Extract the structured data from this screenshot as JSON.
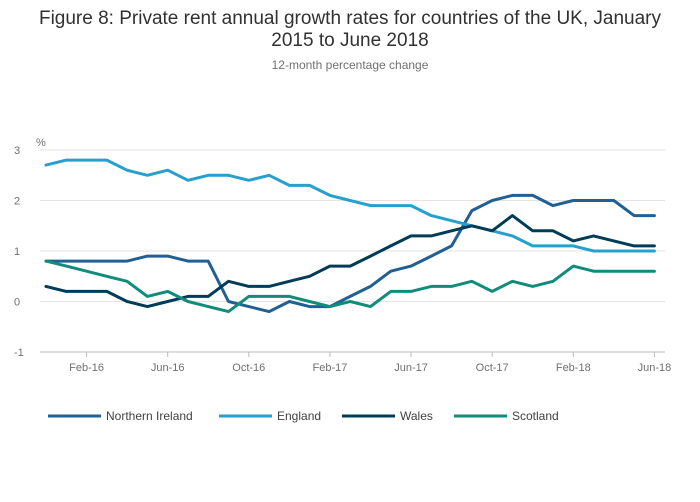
{
  "chart_data": {
    "type": "line",
    "title_lines": [
      "Figure 8: Private rent annual growth rates for countries of the UK, January",
      "2015 to June 2018"
    ],
    "subtitle": "12-month percentage change",
    "ylabel": "%",
    "ylim": [
      -1,
      3
    ],
    "yticks": [
      -1,
      0,
      1,
      2,
      3
    ],
    "x_start": "2015-12",
    "xticks": [
      {
        "index": 2,
        "label": "Feb-16"
      },
      {
        "index": 6,
        "label": "Jun-16"
      },
      {
        "index": 10,
        "label": "Oct-16"
      },
      {
        "index": 14,
        "label": "Feb-17"
      },
      {
        "index": 18,
        "label": "Jun-17"
      },
      {
        "index": 22,
        "label": "Oct-17"
      },
      {
        "index": 26,
        "label": "Feb-18"
      },
      {
        "index": 30,
        "label": "Jun-18"
      }
    ],
    "grid": true,
    "legend_position": "bottom",
    "series": [
      {
        "name": "Northern Ireland",
        "color": "#206095",
        "values": [
          0.8,
          0.8,
          0.8,
          0.8,
          0.8,
          0.9,
          0.9,
          0.8,
          0.8,
          0.0,
          -0.1,
          -0.2,
          0.0,
          -0.1,
          -0.1,
          0.1,
          0.3,
          0.6,
          0.7,
          0.9,
          1.1,
          1.8,
          2.0,
          2.1,
          2.1,
          1.9,
          2.0,
          2.0,
          2.0,
          1.7,
          1.7
        ]
      },
      {
        "name": "England",
        "color": "#27A0CC",
        "values": [
          2.7,
          2.8,
          2.8,
          2.8,
          2.6,
          2.5,
          2.6,
          2.4,
          2.5,
          2.5,
          2.4,
          2.5,
          2.3,
          2.3,
          2.1,
          2.0,
          1.9,
          1.9,
          1.9,
          1.7,
          1.6,
          1.5,
          1.4,
          1.3,
          1.1,
          1.1,
          1.1,
          1.0,
          1.0,
          1.0,
          1.0
        ]
      },
      {
        "name": "Wales",
        "color": "#003C57",
        "values": [
          0.3,
          0.2,
          0.2,
          0.2,
          0.0,
          -0.1,
          0.0,
          0.1,
          0.1,
          0.4,
          0.3,
          0.3,
          0.4,
          0.5,
          0.7,
          0.7,
          0.9,
          1.1,
          1.3,
          1.3,
          1.4,
          1.5,
          1.4,
          1.7,
          1.4,
          1.4,
          1.2,
          1.3,
          1.2,
          1.1,
          1.1
        ]
      },
      {
        "name": "Scotland",
        "color": "#118C7B",
        "values": [
          0.8,
          0.7,
          0.6,
          0.5,
          0.4,
          0.1,
          0.2,
          0.0,
          -0.1,
          -0.2,
          0.1,
          0.1,
          0.1,
          0.0,
          -0.1,
          0.0,
          -0.1,
          0.2,
          0.2,
          0.3,
          0.3,
          0.4,
          0.2,
          0.4,
          0.3,
          0.4,
          0.7,
          0.6,
          0.6,
          0.6,
          0.6
        ]
      }
    ]
  }
}
